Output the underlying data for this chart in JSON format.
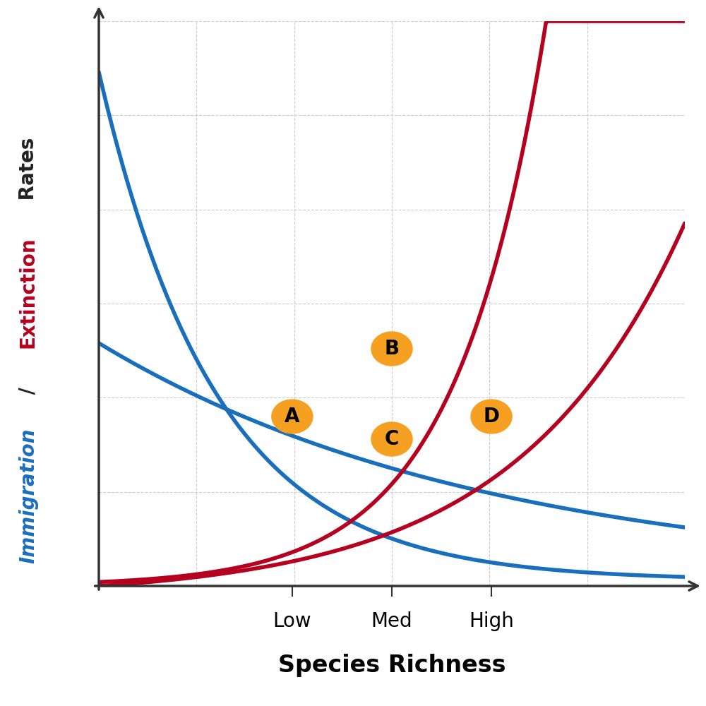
{
  "xlabel": "Species Richness",
  "ylabel_parts": [
    {
      "text": "Immigration",
      "color": "#1a6fbd"
    },
    {
      "text": " / ",
      "color": "#222222"
    },
    {
      "text": "Extinction",
      "color": "#b5001f"
    },
    {
      "text": " Rates",
      "color": "#222222"
    }
  ],
  "blue_color": "#1a6fbd",
  "red_color": "#b5001f",
  "orange_color": "#f5a020",
  "background_color": "#ffffff",
  "grid_color": "#cccccc",
  "x_ticks": [
    0.33,
    0.5,
    0.67
  ],
  "x_tick_labels": [
    "Low",
    "Med",
    "High"
  ],
  "points": {
    "A": [
      0.33,
      0.3
    ],
    "B": [
      0.5,
      0.42
    ],
    "C": [
      0.5,
      0.26
    ],
    "D": [
      0.67,
      0.3
    ]
  },
  "figsize": [
    10,
    10
  ],
  "dpi": 100,
  "curve_lw": 4.0
}
